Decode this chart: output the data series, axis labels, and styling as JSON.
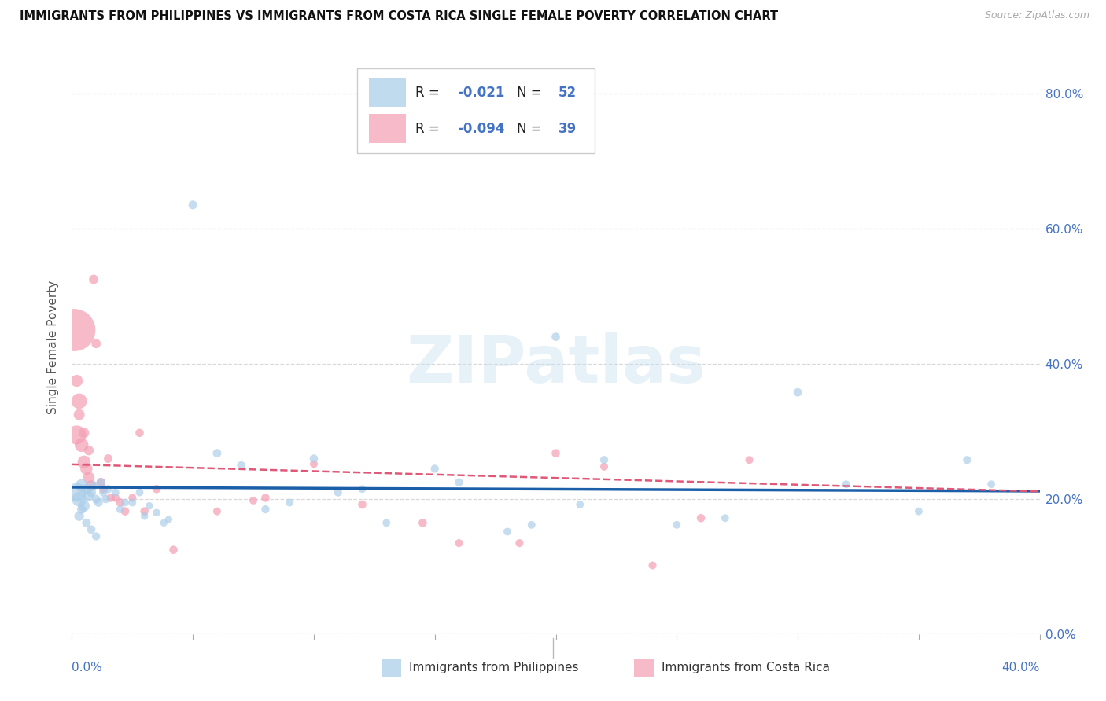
{
  "title": "IMMIGRANTS FROM PHILIPPINES VS IMMIGRANTS FROM COSTA RICA SINGLE FEMALE POVERTY CORRELATION CHART",
  "source_text": "Source: ZipAtlas.com",
  "ylabel": "Single Female Poverty",
  "legend_label_1": "Immigrants from Philippines",
  "legend_label_2": "Immigrants from Costa Rica",
  "R1": -0.021,
  "N1": 52,
  "R2": -0.094,
  "N2": 39,
  "color_blue": "#a8cce8",
  "color_pink": "#f4a0b5",
  "line_blue": "#1a5fa8",
  "line_pink": "#e05878",
  "watermark": "ZIPatlas",
  "xlim": [
    0.0,
    0.4
  ],
  "ylim": [
    0.0,
    0.85
  ],
  "ytick_vals": [
    0.0,
    0.2,
    0.4,
    0.6,
    0.8
  ],
  "blue_x": [
    0.002,
    0.003,
    0.004,
    0.005,
    0.006,
    0.007,
    0.008,
    0.009,
    0.01,
    0.011,
    0.012,
    0.013,
    0.014,
    0.015,
    0.018,
    0.02,
    0.022,
    0.025,
    0.028,
    0.03,
    0.032,
    0.035,
    0.038,
    0.04,
    0.05,
    0.06,
    0.07,
    0.08,
    0.09,
    0.1,
    0.11,
    0.12,
    0.13,
    0.15,
    0.16,
    0.18,
    0.19,
    0.2,
    0.21,
    0.22,
    0.25,
    0.27,
    0.3,
    0.32,
    0.35,
    0.37,
    0.38,
    0.003,
    0.004,
    0.006,
    0.008,
    0.01
  ],
  "blue_y": [
    0.21,
    0.2,
    0.22,
    0.19,
    0.215,
    0.205,
    0.21,
    0.22,
    0.2,
    0.195,
    0.225,
    0.21,
    0.2,
    0.215,
    0.21,
    0.185,
    0.195,
    0.195,
    0.21,
    0.175,
    0.19,
    0.18,
    0.165,
    0.17,
    0.635,
    0.268,
    0.25,
    0.185,
    0.195,
    0.26,
    0.21,
    0.215,
    0.165,
    0.245,
    0.225,
    0.152,
    0.162,
    0.44,
    0.192,
    0.258,
    0.162,
    0.172,
    0.358,
    0.222,
    0.182,
    0.258,
    0.222,
    0.175,
    0.185,
    0.165,
    0.155,
    0.145
  ],
  "blue_sizes": [
    300,
    180,
    140,
    110,
    95,
    85,
    75,
    68,
    65,
    62,
    58,
    58,
    55,
    55,
    52,
    52,
    50,
    50,
    50,
    48,
    48,
    48,
    45,
    45,
    65,
    62,
    58,
    55,
    52,
    58,
    55,
    50,
    50,
    55,
    55,
    50,
    50,
    60,
    50,
    55,
    50,
    50,
    60,
    50,
    50,
    55,
    50,
    80,
    70,
    65,
    60,
    55
  ],
  "pink_x": [
    0.001,
    0.002,
    0.003,
    0.004,
    0.005,
    0.006,
    0.007,
    0.008,
    0.009,
    0.01,
    0.012,
    0.013,
    0.015,
    0.016,
    0.018,
    0.02,
    0.022,
    0.025,
    0.028,
    0.03,
    0.035,
    0.042,
    0.06,
    0.075,
    0.08,
    0.1,
    0.12,
    0.145,
    0.16,
    0.185,
    0.2,
    0.22,
    0.24,
    0.26,
    0.28,
    0.002,
    0.003,
    0.005,
    0.007
  ],
  "pink_y": [
    0.45,
    0.295,
    0.345,
    0.28,
    0.255,
    0.245,
    0.232,
    0.22,
    0.525,
    0.43,
    0.225,
    0.215,
    0.26,
    0.202,
    0.202,
    0.195,
    0.182,
    0.202,
    0.298,
    0.182,
    0.215,
    0.125,
    0.182,
    0.198,
    0.202,
    0.252,
    0.192,
    0.165,
    0.135,
    0.135,
    0.268,
    0.248,
    0.102,
    0.172,
    0.258,
    0.375,
    0.325,
    0.298,
    0.272
  ],
  "pink_sizes": [
    1500,
    300,
    200,
    160,
    140,
    125,
    110,
    95,
    72,
    72,
    68,
    62,
    62,
    58,
    58,
    58,
    58,
    52,
    58,
    58,
    58,
    58,
    52,
    52,
    58,
    52,
    58,
    58,
    52,
    52,
    58,
    52,
    52,
    58,
    52,
    120,
    100,
    90,
    80
  ]
}
